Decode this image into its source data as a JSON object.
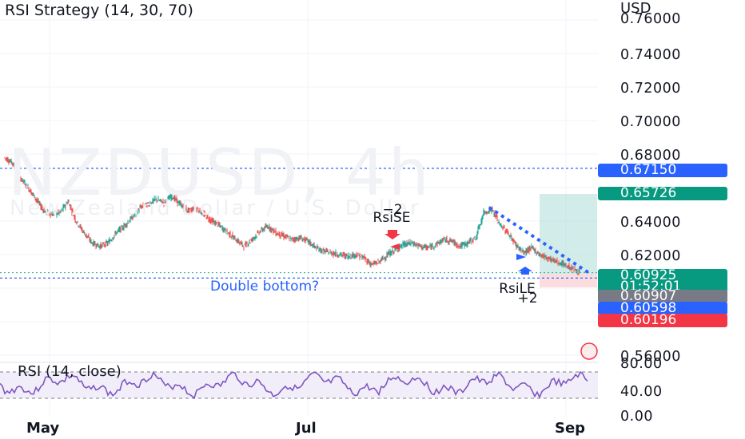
{
  "header": {
    "title": "RSI Strategy (14, 30, 70)",
    "currency": "USD"
  },
  "watermark": {
    "symbol": "NZDUSD, 4h",
    "description": "New Zealand Dollar / U.S. Dollar"
  },
  "price_axis": {
    "ticks": [
      "0.76000",
      "0.74000",
      "0.72000",
      "0.70000",
      "0.68000",
      "0.64000",
      "0.62000",
      "0.56000"
    ]
  },
  "price_badges": {
    "level_line": "0.67150",
    "target": "0.65726",
    "last_price": "0.60925",
    "countdown": "01:52:01",
    "stop_gray": "0.60907",
    "entry_blue": "0.60598",
    "stop_red": "0.60196"
  },
  "colors": {
    "up": "#26a69a",
    "down": "#ef5350",
    "blue": "#2962ff",
    "rsi": "#7e57c2",
    "badge_blue": "#2962ff",
    "badge_green": "#089981",
    "badge_gray": "#787b86",
    "badge_red": "#f23645"
  },
  "annotations": {
    "short_qty": "−2",
    "short_label": "RsiSE",
    "long_label": "RsiLE",
    "long_qty": "+2",
    "note": "Double bottom?"
  },
  "rsi_panel": {
    "label": "RSI (14, close)",
    "ticks": [
      "80.00",
      "40.00",
      "0.00"
    ]
  },
  "time_axis": {
    "labels": [
      "May",
      "Jul",
      "Sep"
    ]
  },
  "chart_data": {
    "type": "candlestick",
    "symbol": "NZDUSD",
    "interval": "4h",
    "ylim": [
      0.55,
      0.77
    ],
    "close_path": [
      [
        0,
        0.678
      ],
      [
        1,
        0.675
      ],
      [
        2,
        0.666
      ],
      [
        3,
        0.66
      ],
      [
        4,
        0.653
      ],
      [
        5,
        0.646
      ],
      [
        6,
        0.644
      ],
      [
        7,
        0.645
      ],
      [
        8,
        0.652
      ],
      [
        9,
        0.64
      ],
      [
        10,
        0.633
      ],
      [
        11,
        0.627
      ],
      [
        12,
        0.625
      ],
      [
        13,
        0.627
      ],
      [
        14,
        0.633
      ],
      [
        15,
        0.637
      ],
      [
        16,
        0.642
      ],
      [
        17,
        0.648
      ],
      [
        18,
        0.65
      ],
      [
        19,
        0.653
      ],
      [
        20,
        0.651
      ],
      [
        21,
        0.655
      ],
      [
        22,
        0.65
      ],
      [
        23,
        0.646
      ],
      [
        24,
        0.648
      ],
      [
        25,
        0.644
      ],
      [
        26,
        0.64
      ],
      [
        27,
        0.637
      ],
      [
        28,
        0.633
      ],
      [
        29,
        0.629
      ],
      [
        30,
        0.625
      ],
      [
        31,
        0.629
      ],
      [
        32,
        0.634
      ],
      [
        33,
        0.637
      ],
      [
        34,
        0.633
      ],
      [
        35,
        0.631
      ],
      [
        36,
        0.629
      ],
      [
        37,
        0.63
      ],
      [
        38,
        0.628
      ],
      [
        39,
        0.624
      ],
      [
        40,
        0.622
      ],
      [
        41,
        0.621
      ],
      [
        42,
        0.62
      ],
      [
        43,
        0.619
      ],
      [
        44,
        0.62
      ],
      [
        45,
        0.618
      ],
      [
        46,
        0.614
      ],
      [
        47,
        0.616
      ],
      [
        48,
        0.62
      ],
      [
        49,
        0.623
      ],
      [
        50,
        0.626
      ],
      [
        51,
        0.627
      ],
      [
        52,
        0.625
      ],
      [
        53,
        0.624
      ],
      [
        54,
        0.626
      ],
      [
        55,
        0.629
      ],
      [
        56,
        0.628
      ],
      [
        57,
        0.625
      ],
      [
        58,
        0.627
      ],
      [
        59,
        0.63
      ],
      [
        60,
        0.645
      ],
      [
        61,
        0.647
      ],
      [
        62,
        0.638
      ],
      [
        63,
        0.633
      ],
      [
        64,
        0.626
      ],
      [
        65,
        0.621
      ],
      [
        66,
        0.624
      ],
      [
        67,
        0.62
      ],
      [
        68,
        0.618
      ],
      [
        69,
        0.616
      ],
      [
        70,
        0.614
      ],
      [
        71,
        0.612
      ],
      [
        72,
        0.6093
      ]
    ]
  }
}
